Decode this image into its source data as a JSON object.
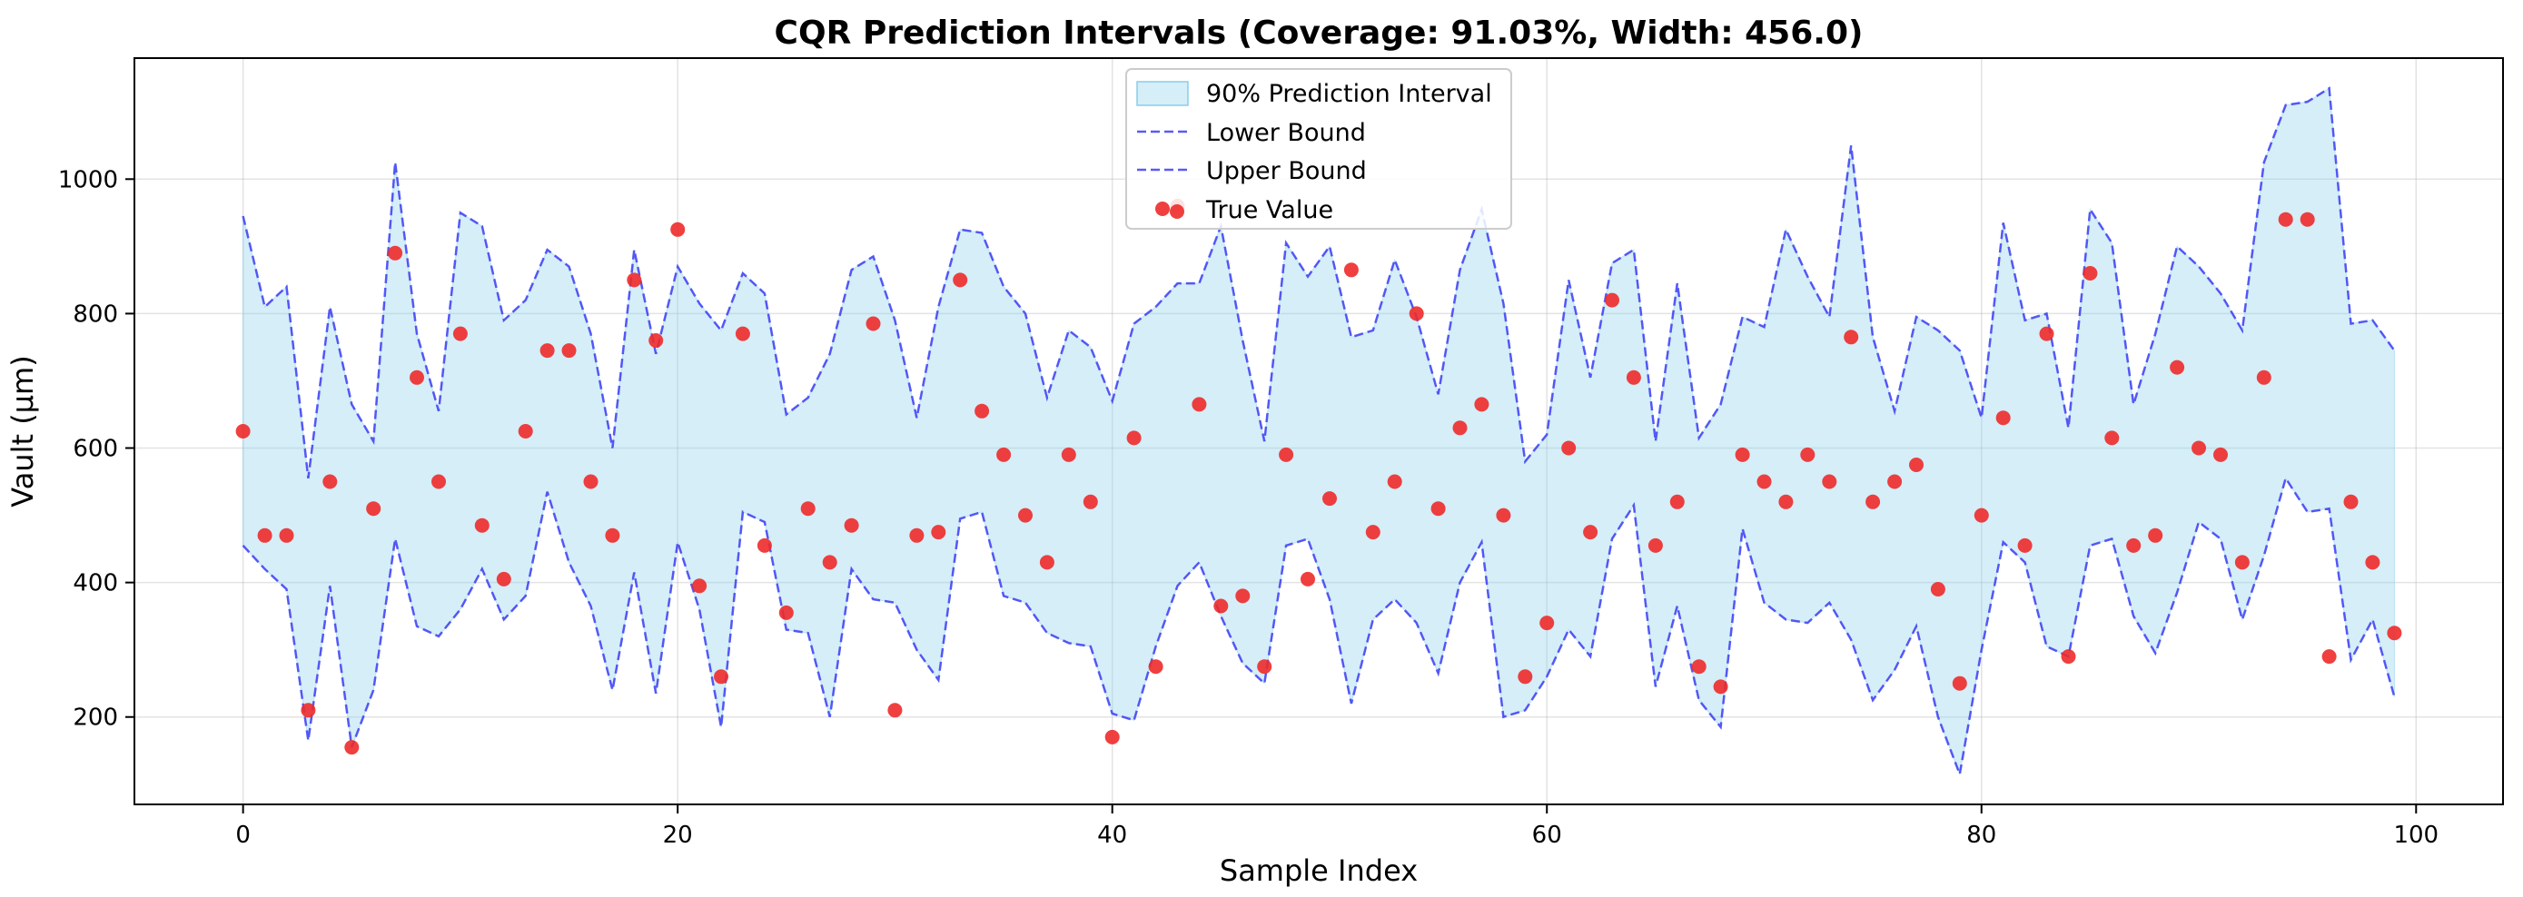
{
  "chart_data": {
    "type": "line",
    "title": "CQR Prediction Intervals (Coverage: 91.03%, Width: 456.0)",
    "xlabel": "Sample Index",
    "ylabel": "Vault (µm)",
    "xlim": [
      -5,
      104
    ],
    "ylim": [
      70,
      1180
    ],
    "xticks": [
      0,
      20,
      40,
      60,
      80,
      100
    ],
    "yticks": [
      200,
      400,
      600,
      800,
      1000
    ],
    "grid": true,
    "legend_position": "top-center",
    "colors": {
      "band": "#87ceeb",
      "bound": "#3d3df5",
      "point": "#ee2a2a"
    },
    "legend": {
      "band": "90% Prediction Interval",
      "lower": "Lower Bound",
      "upper": "Upper Bound",
      "points": "True Value"
    },
    "x": [
      0,
      1,
      2,
      3,
      4,
      5,
      6,
      7,
      8,
      9,
      10,
      11,
      12,
      13,
      14,
      15,
      16,
      17,
      18,
      19,
      20,
      21,
      22,
      23,
      24,
      25,
      26,
      27,
      28,
      29,
      30,
      31,
      32,
      33,
      34,
      35,
      36,
      37,
      38,
      39,
      40,
      41,
      42,
      43,
      44,
      45,
      46,
      47,
      48,
      49,
      50,
      51,
      52,
      53,
      54,
      55,
      56,
      57,
      58,
      59,
      60,
      61,
      62,
      63,
      64,
      65,
      66,
      67,
      68,
      69,
      70,
      71,
      72,
      73,
      74,
      75,
      76,
      77,
      78,
      79,
      80,
      81,
      82,
      83,
      84,
      85,
      86,
      87,
      88,
      89,
      90,
      91,
      92,
      93,
      94,
      95,
      96,
      97,
      98,
      99
    ],
    "series": [
      {
        "name": "Lower Bound",
        "values": [
          455,
          420,
          390,
          165,
          395,
          155,
          240,
          465,
          335,
          320,
          360,
          420,
          345,
          380,
          535,
          430,
          365,
          240,
          415,
          235,
          460,
          360,
          185,
          505,
          490,
          330,
          325,
          200,
          420,
          375,
          370,
          300,
          255,
          495,
          505,
          380,
          370,
          325,
          310,
          305,
          205,
          195,
          305,
          395,
          430,
          350,
          280,
          250,
          455,
          465,
          375,
          220,
          345,
          375,
          340,
          265,
          400,
          460,
          200,
          210,
          260,
          330,
          290,
          465,
          515,
          245,
          365,
          225,
          185,
          480,
          370,
          345,
          340,
          370,
          315,
          225,
          270,
          335,
          200,
          115,
          300,
          460,
          430,
          305,
          290,
          455,
          465,
          350,
          295,
          385,
          490,
          465,
          345,
          440,
          555,
          505,
          510,
          285,
          345,
          230
        ]
      },
      {
        "name": "Upper Bound",
        "values": [
          945,
          810,
          840,
          555,
          810,
          665,
          610,
          1025,
          770,
          655,
          950,
          930,
          790,
          820,
          895,
          870,
          770,
          600,
          895,
          740,
          870,
          815,
          775,
          860,
          830,
          650,
          675,
          740,
          865,
          885,
          790,
          645,
          810,
          925,
          920,
          840,
          800,
          675,
          775,
          750,
          670,
          785,
          810,
          845,
          845,
          930,
          760,
          610,
          905,
          855,
          900,
          765,
          775,
          880,
          795,
          680,
          865,
          955,
          815,
          580,
          620,
          850,
          705,
          875,
          895,
          610,
          845,
          615,
          665,
          795,
          780,
          925,
          855,
          795,
          1050,
          765,
          655,
          795,
          775,
          745,
          645,
          935,
          790,
          800,
          630,
          955,
          905,
          665,
          770,
          900,
          870,
          830,
          775,
          1025,
          1110,
          1115,
          1135,
          785,
          790,
          745
        ]
      },
      {
        "name": "True Value",
        "values": [
          625,
          470,
          470,
          210,
          550,
          155,
          510,
          890,
          705,
          550,
          770,
          485,
          405,
          625,
          745,
          745,
          550,
          470,
          850,
          760,
          925,
          395,
          260,
          770,
          455,
          355,
          510,
          430,
          485,
          785,
          210,
          470,
          475,
          850,
          655,
          590,
          500,
          430,
          590,
          520,
          170,
          615,
          275,
          960,
          665,
          365,
          380,
          275,
          590,
          405,
          525,
          865,
          475,
          550,
          800,
          510,
          630,
          665,
          500,
          260,
          340,
          600,
          475,
          820,
          705,
          455,
          520,
          275,
          245,
          590,
          550,
          520,
          590,
          550,
          765,
          520,
          550,
          575,
          390,
          250,
          500,
          645,
          455,
          770,
          290,
          860,
          615,
          455,
          470,
          720,
          600,
          590,
          430,
          705,
          940,
          940,
          290,
          520,
          430,
          325
        ]
      }
    ]
  }
}
